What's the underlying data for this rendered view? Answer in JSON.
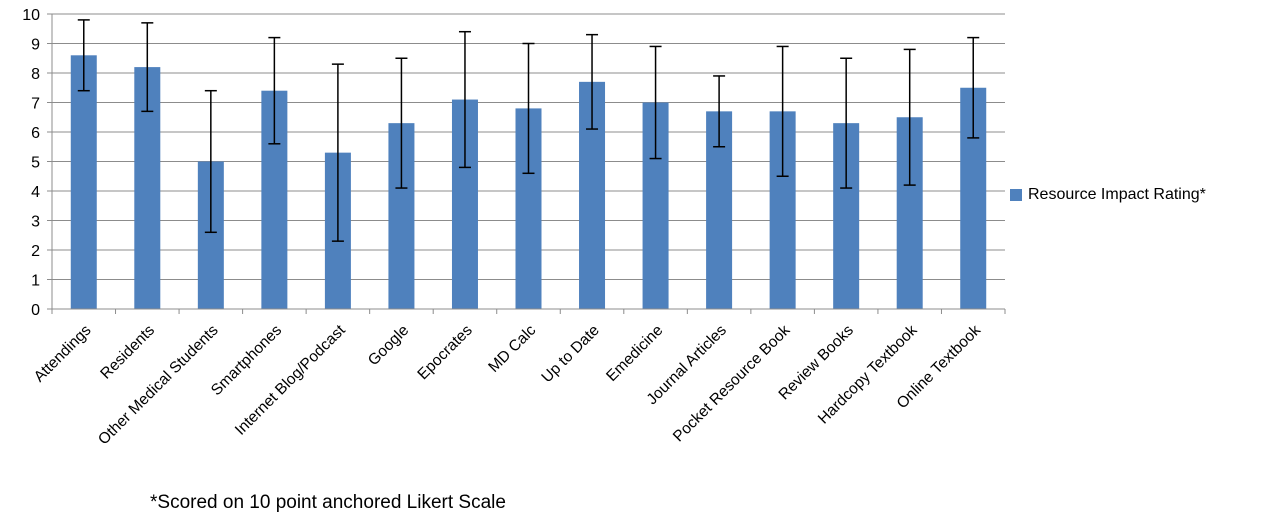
{
  "chart_data": {
    "type": "bar",
    "categories": [
      "Attendings",
      "Residents",
      "Other Medical Students",
      "Smartphones",
      "Internet Blog/Podcast",
      "Google",
      "Epocrates",
      "MD Calc",
      "Up to Date",
      "Emedicine",
      "Journal Articles",
      "Pocket Resource Book",
      "Review Books",
      "Hardcopy Textbook",
      "Online Textbook"
    ],
    "series": [
      {
        "name": "Resource Impact Rating*",
        "values": [
          8.6,
          8.2,
          5.0,
          7.4,
          5.3,
          6.3,
          7.1,
          6.8,
          7.7,
          7.0,
          6.7,
          6.7,
          6.3,
          6.5,
          7.5
        ],
        "error_low": [
          7.4,
          6.7,
          2.6,
          5.6,
          2.3,
          4.1,
          4.8,
          4.6,
          6.1,
          5.1,
          5.5,
          4.5,
          4.1,
          4.2,
          5.8
        ],
        "error_high": [
          9.8,
          9.7,
          7.4,
          9.2,
          8.3,
          8.5,
          9.4,
          9.0,
          9.3,
          8.9,
          7.9,
          8.9,
          8.5,
          8.8,
          9.2
        ],
        "color": "#4f81bd"
      }
    ],
    "ylim": [
      0,
      10
    ],
    "yticks": [
      "0",
      "1",
      "2",
      "3",
      "4",
      "5",
      "6",
      "7",
      "8",
      "9",
      "10"
    ],
    "grid": true,
    "legend_position": "right"
  },
  "footnote": "*Scored on 10 point anchored Likert Scale"
}
